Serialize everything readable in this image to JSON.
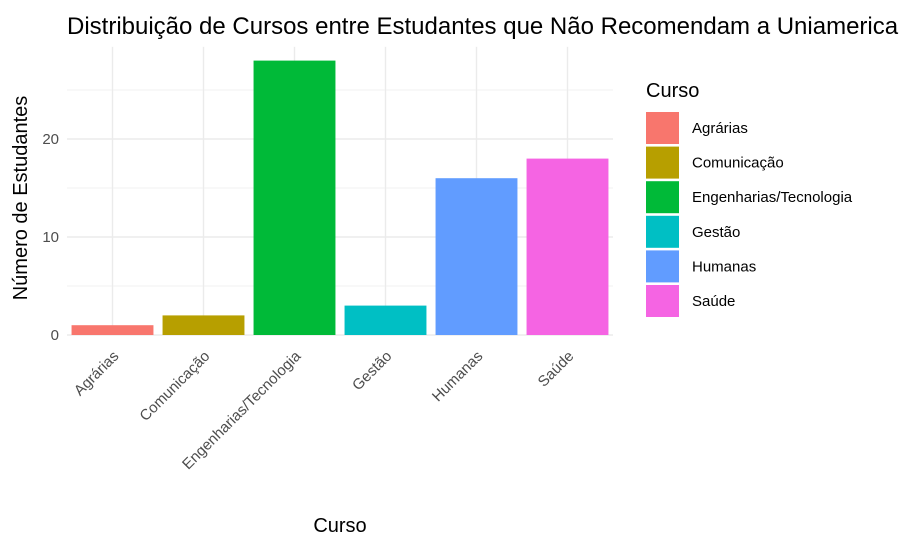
{
  "chart_data": {
    "type": "bar",
    "title": "Distribuição de Cursos entre Estudantes que Não Recomendam a Uniamerica",
    "xlabel": "Curso",
    "ylabel": "Número de Estudantes",
    "categories": [
      "Agrárias",
      "Comunicação",
      "Engenharias/Tecnologia",
      "Gestão",
      "Humanas",
      "Saúde"
    ],
    "values": [
      1,
      2,
      28,
      3,
      16,
      18
    ],
    "colors": [
      "#F8766D",
      "#B79F00",
      "#00BA38",
      "#00BFC4",
      "#619CFF",
      "#F564E3"
    ],
    "yticks": [
      0,
      10,
      20
    ],
    "ylim": [
      0,
      29.4
    ],
    "grid": true,
    "legend": {
      "title": "Curso",
      "position": "right",
      "entries": [
        "Agrárias",
        "Comunicação",
        "Engenharias/Tecnologia",
        "Gestão",
        "Humanas",
        "Saúde"
      ]
    }
  }
}
